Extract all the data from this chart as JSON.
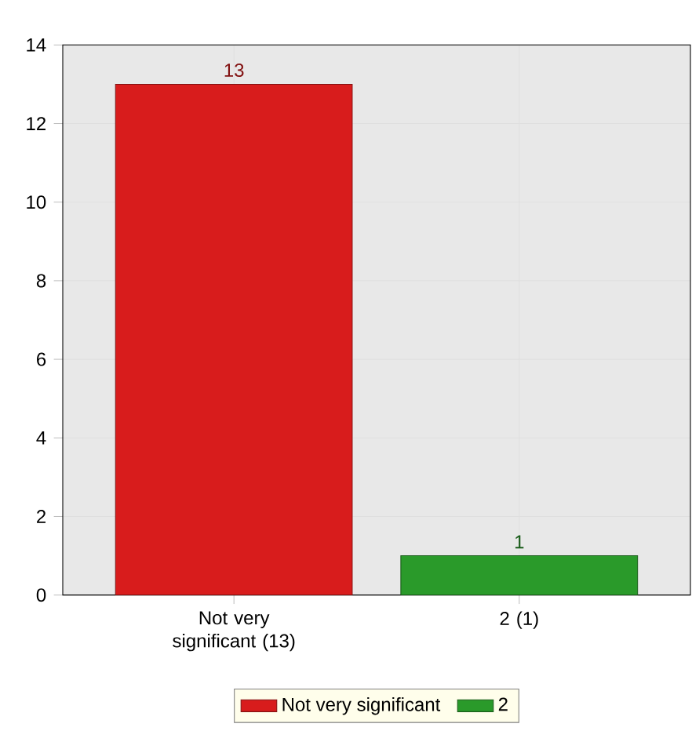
{
  "chart_data": {
    "type": "bar",
    "categories": [
      "Not very significant (13)",
      "2 (1)"
    ],
    "series": [
      {
        "name": "Not very significant",
        "color": "#d81c1c",
        "values": [
          13,
          null
        ]
      },
      {
        "name": "2",
        "color": "#2a9a2a",
        "values": [
          null,
          1
        ]
      }
    ],
    "ylim": [
      0,
      14
    ],
    "yticks": [
      0,
      2,
      4,
      6,
      8,
      10,
      12,
      14
    ],
    "grid": true,
    "legend": "bottom",
    "data_labels": true
  }
}
